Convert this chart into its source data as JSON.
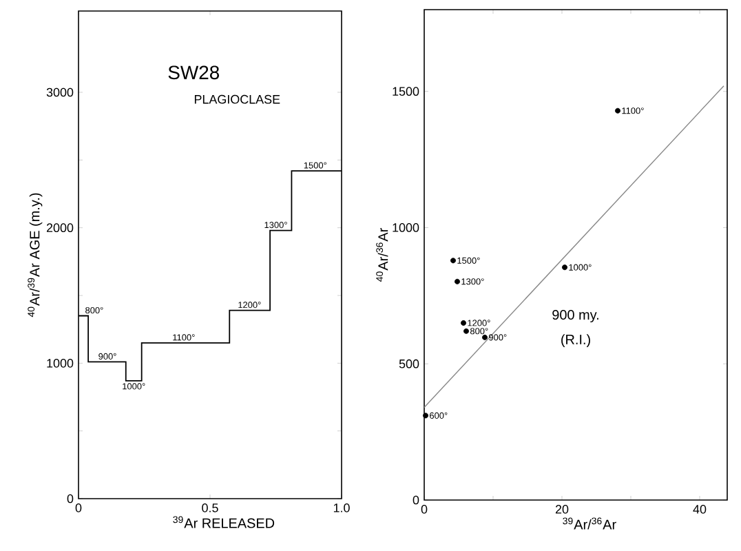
{
  "chart_data": [
    {
      "type": "histogram",
      "title": "SW28",
      "subtitle": "PLAGIOCLASE",
      "xlabel": "$^{39}$Ar RELEASED",
      "ylabel": "$^{40}$Ar/$^{39}$Ar AGE (m.y.)",
      "bins": [
        0,
        0.037,
        0.18,
        0.24,
        0.574,
        0.728,
        0.81,
        1.0
      ],
      "values": [
        1350,
        1010,
        870,
        1150,
        1390,
        1980,
        2420
      ],
      "color": "#000000",
      "xlim": [
        0,
        1
      ],
      "ylim": [
        0,
        3600
      ],
      "xticks": [
        0,
        0.5,
        {
          "value": 1,
          "label": "1.0"
        }
      ],
      "yticks": [
        0,
        {
          "value": 500,
          "label": null
        },
        1000,
        {
          "value": 1500,
          "label": null
        },
        2000,
        {
          "value": 2500,
          "label": null
        },
        3000
      ],
      "annotations": [
        {
          "text": "800°",
          "x": 0.06,
          "y": 1350
        },
        {
          "text": "900°",
          "x": 0.11,
          "y": 1010
        },
        {
          "text": "1000°",
          "x": 0.21,
          "y": 870
        },
        {
          "text": "1100°",
          "x": 0.4,
          "y": 1150
        },
        {
          "text": "1200°",
          "x": 0.65,
          "y": 1390
        },
        {
          "text": "1300°",
          "x": 0.75,
          "y": 1980
        },
        {
          "text": "1500°",
          "x": 0.9,
          "y": 2420
        }
      ]
    },
    {
      "type": "scatter",
      "xlabel": "$^{39}$Ar/$^{36}$Ar",
      "ylabel": "$^{40}$Ar/$^{36}$Ar",
      "marker": "circle",
      "series": [
        {
          "type": "scatter",
          "color": "#000000",
          "x": [
            0.2,
            6.1,
            8.8,
            20.4,
            28.1,
            5.7,
            4.8,
            4.2
          ],
          "values": [
            310,
            620,
            597,
            854,
            1429,
            650,
            802,
            879
          ]
        },
        {
          "type": "line",
          "marker": "none",
          "color": "#888888",
          "x": [
            0,
            43.5
          ],
          "values": [
            340,
            1520
          ]
        }
      ],
      "xlim": [
        0,
        44
      ],
      "ylim": [
        0,
        1800
      ],
      "xticks": [
        0,
        {
          "value": 10,
          "label": null
        },
        20,
        {
          "value": 30,
          "label": null
        },
        40
      ],
      "yticks": [
        0,
        500,
        1000,
        1500
      ],
      "annotations": [
        {
          "text": "600°",
          "x": 0.2,
          "y": 310
        },
        {
          "text": "800°",
          "x": 6.1,
          "y": 620
        },
        {
          "text": "900°",
          "x": 8.8,
          "y": 597
        },
        {
          "text": "1000°",
          "x": 20.4,
          "y": 854
        },
        {
          "text": "1100°",
          "x": 28.1,
          "y": 1429
        },
        {
          "text": "1200°",
          "x": 5.7,
          "y": 650
        },
        {
          "text": "1300°",
          "x": 4.8,
          "y": 802
        },
        {
          "text": "1500°",
          "x": 4.2,
          "y": 879
        },
        "900 my.",
        "(R.I.)"
      ]
    }
  ]
}
